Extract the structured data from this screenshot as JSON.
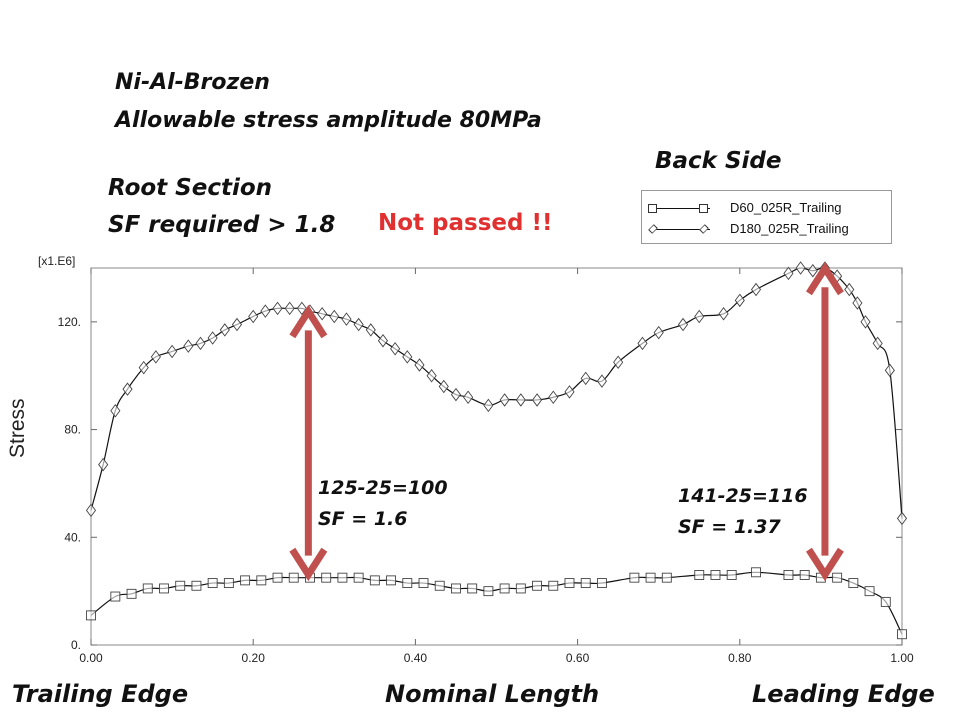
{
  "slide": {
    "material": "Ni-Al-Brozen",
    "allowable": "Allowable stress amplitude 80MPa",
    "section": "Root Section",
    "sf_required": "SF required > 1.8",
    "side": "Back Side",
    "status": "Not passed !!",
    "annotation1_line1": "125-25=100",
    "annotation1_line2": "SF = 1.6",
    "annotation2_line1": "141-25=116",
    "annotation2_line2": "SF = 1.37",
    "edge_left": "Trailing Edge",
    "edge_middle": "Nominal Length",
    "edge_right": "Leading Edge"
  },
  "colors": {
    "status": "#e03030",
    "arrow": "#c0504d",
    "series": "#111111"
  },
  "chart_data": {
    "type": "line",
    "title": "",
    "xlabel": "",
    "ylabel": "Stress",
    "y_multiplier": "[x1.E6]",
    "xlim": [
      0,
      1
    ],
    "ylim": [
      0,
      140
    ],
    "x_ticks": [
      0,
      0.2,
      0.4,
      0.6,
      0.8,
      1.0
    ],
    "x_tick_labels": [
      "0.00",
      "0.20",
      "0.40",
      "0.60",
      "0.80",
      "1.00"
    ],
    "y_ticks": [
      0,
      40,
      80,
      120
    ],
    "y_tick_labels": [
      "0.",
      "40.",
      "80.",
      "120."
    ],
    "legend_position": "top-right",
    "series": [
      {
        "name": "D60_025R_Trailing",
        "marker": "square",
        "x": [
          0.0,
          0.03,
          0.05,
          0.07,
          0.09,
          0.11,
          0.13,
          0.15,
          0.17,
          0.19,
          0.21,
          0.23,
          0.25,
          0.27,
          0.29,
          0.31,
          0.33,
          0.35,
          0.37,
          0.39,
          0.41,
          0.43,
          0.45,
          0.47,
          0.49,
          0.51,
          0.53,
          0.55,
          0.57,
          0.59,
          0.61,
          0.63,
          0.67,
          0.69,
          0.71,
          0.75,
          0.77,
          0.79,
          0.82,
          0.86,
          0.88,
          0.9,
          0.92,
          0.94,
          0.96,
          0.98,
          1.0
        ],
        "values": [
          11,
          18,
          19,
          21,
          21,
          22,
          22,
          23,
          23,
          24,
          24,
          25,
          25,
          25,
          25,
          25,
          25,
          24,
          24,
          23,
          23,
          22,
          21,
          21,
          20,
          21,
          21,
          22,
          22,
          23,
          23,
          23,
          25,
          25,
          25,
          26,
          26,
          26,
          27,
          26,
          26,
          25,
          25,
          23,
          20,
          16,
          4
        ]
      },
      {
        "name": "D180_025R_Trailing",
        "marker": "diamond",
        "x": [
          0.0,
          0.015,
          0.03,
          0.045,
          0.065,
          0.08,
          0.1,
          0.12,
          0.135,
          0.15,
          0.165,
          0.18,
          0.2,
          0.215,
          0.23,
          0.245,
          0.26,
          0.27,
          0.285,
          0.3,
          0.315,
          0.33,
          0.345,
          0.36,
          0.375,
          0.39,
          0.405,
          0.42,
          0.435,
          0.45,
          0.465,
          0.49,
          0.51,
          0.53,
          0.55,
          0.57,
          0.59,
          0.61,
          0.63,
          0.65,
          0.68,
          0.7,
          0.73,
          0.75,
          0.78,
          0.8,
          0.82,
          0.86,
          0.875,
          0.89,
          0.905,
          0.92,
          0.935,
          0.945,
          0.955,
          0.97,
          0.985,
          1.0
        ],
        "values": [
          50,
          67,
          87,
          95,
          103,
          107,
          109,
          111,
          112,
          114,
          117,
          119,
          122,
          124,
          125,
          125,
          125,
          124,
          123,
          122,
          121,
          119,
          117,
          113,
          110,
          107,
          104,
          100,
          96,
          93,
          92,
          89,
          91,
          91,
          91,
          92,
          94,
          99,
          98,
          105,
          112,
          116,
          119,
          122,
          123,
          128,
          132,
          138,
          140,
          139,
          140,
          137,
          132,
          127,
          120,
          112,
          102,
          47
        ]
      }
    ]
  }
}
